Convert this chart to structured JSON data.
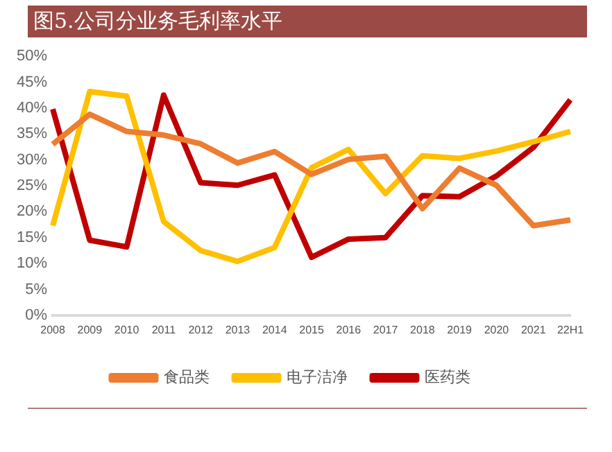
{
  "chart_data": {
    "type": "line",
    "title": "图5.公司分业务毛利率水平",
    "categories": [
      "2008",
      "2009",
      "2010",
      "2011",
      "2012",
      "2013",
      "2014",
      "2015",
      "2016",
      "2017",
      "2018",
      "2019",
      "2020",
      "2021",
      "22H1"
    ],
    "series": [
      {
        "name": "食品类",
        "color": "#ed7d31",
        "values": [
          33.0,
          38.8,
          35.5,
          34.8,
          33.1,
          29.4,
          31.6,
          27.2,
          30.1,
          30.7,
          20.6,
          28.4,
          25.1,
          17.3,
          18.4
        ]
      },
      {
        "name": "电子洁净",
        "color": "#ffc000",
        "values": [
          17.3,
          43.2,
          42.3,
          18.1,
          12.5,
          10.4,
          13.1,
          28.5,
          32.0,
          23.5,
          30.8,
          30.3,
          31.7,
          33.5,
          35.5
        ]
      },
      {
        "name": "医药类",
        "color": "#c00000",
        "values": [
          39.8,
          14.5,
          13.2,
          42.5,
          25.6,
          25.1,
          27.1,
          11.2,
          14.7,
          15.0,
          23.1,
          22.9,
          26.9,
          32.4,
          41.6
        ]
      }
    ],
    "ylim": [
      0,
      50
    ],
    "yticks": [
      {
        "value": 0,
        "label": "0%"
      },
      {
        "value": 5,
        "label": "5%"
      },
      {
        "value": 10,
        "label": "10%"
      },
      {
        "value": 15,
        "label": "15%"
      },
      {
        "value": 20,
        "label": "20%"
      },
      {
        "value": 25,
        "label": "25%"
      },
      {
        "value": 30,
        "label": "30%"
      },
      {
        "value": 35,
        "label": "35%"
      },
      {
        "value": 40,
        "label": "40%"
      },
      {
        "value": 45,
        "label": "45%"
      },
      {
        "value": 50,
        "label": "50%"
      }
    ],
    "grid": false,
    "legend": "bottom",
    "marker": "none",
    "line_style": "solid"
  }
}
